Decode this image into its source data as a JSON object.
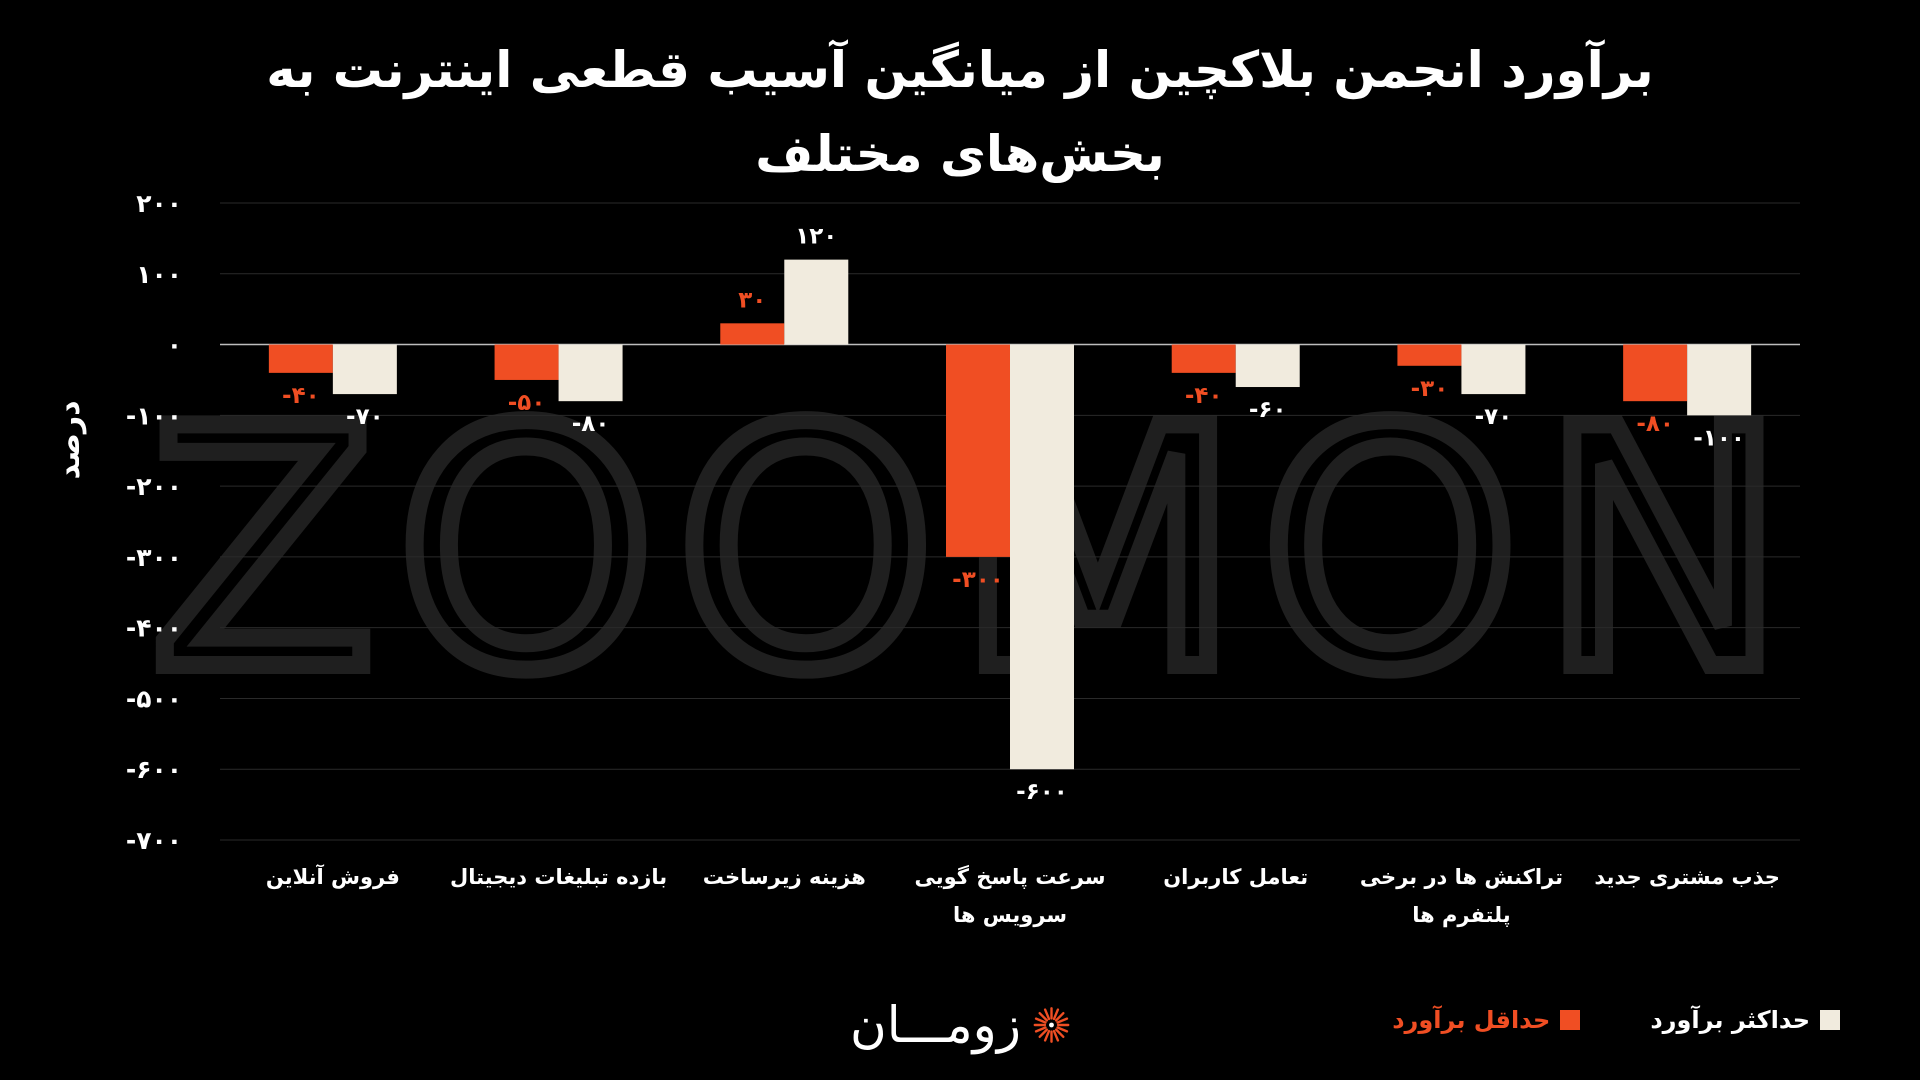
{
  "chart_data": {
    "type": "bar",
    "title_lines": [
      "برآورد انجمن بلاکچین از میانگین آسیب قطعی اینترنت به",
      "بخش‌های مختلف"
    ],
    "ylabel": "درصد",
    "ylim": [
      -700,
      200
    ],
    "yticks": [
      200,
      100,
      0,
      -100,
      -200,
      -300,
      -400,
      -500,
      -600,
      -700
    ],
    "ytick_labels": [
      "۲۰۰",
      "۱۰۰",
      "۰",
      "-۱۰۰",
      "-۲۰۰",
      "-۳۰۰",
      "-۴۰۰",
      "-۵۰۰",
      "-۶۰۰",
      "-۷۰۰"
    ],
    "grid": true,
    "legend_position": "bottom-right",
    "categories": [
      [
        "فروش آنلاین"
      ],
      [
        "بازده تبلیغات دیجیتال"
      ],
      [
        "هزینه زیرساخت"
      ],
      [
        "سرعت پاسخ گویی",
        "سرویس ها"
      ],
      [
        "تعامل کاربران"
      ],
      [
        "تراکنش ها در برخی",
        "پلتفرم ها"
      ],
      [
        "جذب مشتری جدید"
      ]
    ],
    "series": [
      {
        "name": "حداقل برآورد",
        "color": "#F04E23",
        "values": [
          -40,
          -50,
          30,
          -300,
          -40,
          -30,
          -80
        ],
        "labels": [
          "-۴۰",
          "-۵۰",
          "۳۰",
          "-۳۰۰",
          "-۴۰",
          "-۳۰",
          "-۸۰"
        ]
      },
      {
        "name": "حداکثر برآورد",
        "color": "#F1EBDE",
        "values": [
          -70,
          -80,
          120,
          -600,
          -60,
          -70,
          -100
        ],
        "labels": [
          "-۷۰",
          "-۸۰",
          "۱۲۰",
          "-۶۰۰",
          "-۶۰",
          "-۷۰",
          "-۱۰۰"
        ]
      }
    ]
  },
  "legend": {
    "min_label": "حداقل برآورد",
    "max_label": "حداکثر برآورد",
    "min_color": "#F04E23",
    "max_color": "#F1EBDE"
  },
  "watermark": {
    "text": "ZOOMON"
  },
  "brand": {
    "name": "زومـــان",
    "icon": "sunburst-logo-icon",
    "accent": "#F04E23"
  },
  "colors": {
    "background": "#000000",
    "grid": "#2a2a2a",
    "text": "#ffffff"
  }
}
